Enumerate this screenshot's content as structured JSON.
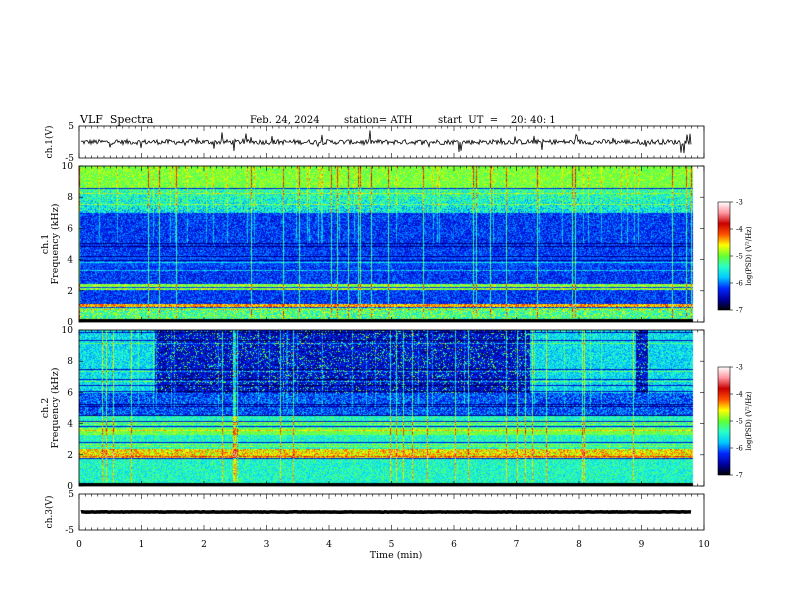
{
  "header": {
    "title": "VLF  Spectra",
    "date": "Feb. 24, 2024",
    "station": "station= ATH",
    "start_ut": "start  UT  =    20: 40: 1"
  },
  "chart_data": [
    {
      "type": "line",
      "panel": "ch1-waveform",
      "ylabel": "ch.1(V)",
      "yticks": [
        "5",
        "-5"
      ],
      "ylim": [
        -5,
        5
      ],
      "xlim": [
        0,
        10
      ],
      "approx_level_v": 0,
      "x_unit": "min"
    },
    {
      "type": "heatmap",
      "panel": "ch1-spectrogram",
      "ylabel": "ch.1\nFrequency (kHz)",
      "yticks": [
        "0",
        "2",
        "4",
        "6",
        "8",
        "10"
      ],
      "ylim": [
        0,
        10
      ],
      "xlim": [
        0,
        10
      ],
      "data_end_min": 9.8,
      "colorbar": {
        "label": "log(PSD) (V²/Hz)",
        "ticks": [
          "-3",
          "-4",
          "-5",
          "-6",
          "-7"
        ],
        "range": [
          -7,
          -3
        ]
      }
    },
    {
      "type": "heatmap",
      "panel": "ch2-spectrogram",
      "ylabel": "ch.2\nFrequency (kHz)",
      "yticks": [
        "0",
        "2",
        "4",
        "6",
        "8",
        "10"
      ],
      "ylim": [
        0,
        10
      ],
      "xlim": [
        0,
        10
      ],
      "data_end_min": 9.8,
      "colorbar": {
        "label": "log(PSD) (V²/Hz)",
        "ticks": [
          "-3",
          "-4",
          "-5",
          "-6",
          "-7"
        ],
        "range": [
          -7,
          -3
        ]
      }
    },
    {
      "type": "line",
      "panel": "ch3-waveform",
      "ylabel": "ch.3(V)",
      "yticks": [
        "5",
        "-5"
      ],
      "ylim": [
        -5,
        5
      ],
      "xlim": [
        0,
        10
      ],
      "approx_level_v": 0,
      "x_unit": "min"
    }
  ],
  "xaxis": {
    "label": "Time  (min)",
    "ticks": [
      "0",
      "1",
      "2",
      "3",
      "4",
      "5",
      "6",
      "7",
      "8",
      "9",
      "10"
    ]
  },
  "colormap": [
    "#000000",
    "#0000a0",
    "#0028ff",
    "#00c8ff",
    "#28ffc8",
    "#64ff32",
    "#ffff00",
    "#ff5000",
    "#c80000",
    "#ff96a0",
    "#ffffff"
  ]
}
